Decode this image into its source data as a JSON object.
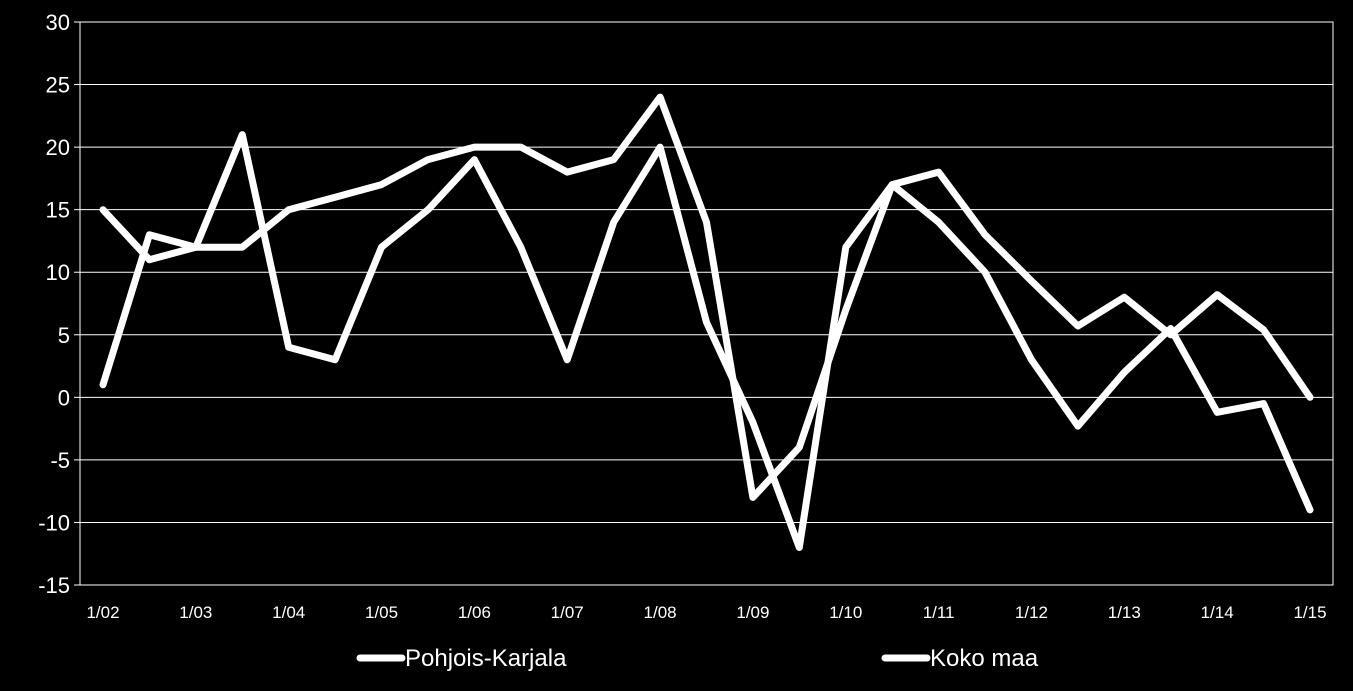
{
  "chart_data": {
    "type": "line",
    "title": "",
    "xlabel": "",
    "ylabel": "",
    "ylim": [
      -15,
      30
    ],
    "yticks": [
      "30",
      "25",
      "20",
      "15",
      "10",
      "5",
      "0",
      "-5",
      "-10",
      "-15"
    ],
    "ytick_values": [
      30,
      25,
      20,
      15,
      10,
      5,
      0,
      -5,
      -10,
      -15
    ],
    "xtick_labels": [
      "1/02",
      "1/03",
      "1/04",
      "1/05",
      "1/06",
      "1/07",
      "1/08",
      "1/09",
      "1/10",
      "1/11",
      "1/12",
      "1/13",
      "1/14",
      "1/15"
    ],
    "x": [
      "1/02",
      "7/02",
      "1/03",
      "7/03",
      "1/04",
      "7/04",
      "1/05",
      "7/05",
      "1/06",
      "7/06",
      "1/07",
      "7/07",
      "1/08",
      "7/08",
      "1/09",
      "7/09",
      "1/10",
      "7/10",
      "1/11",
      "7/11",
      "1/12",
      "7/12",
      "1/13",
      "7/13",
      "1/14",
      "7/14",
      "1/15"
    ],
    "grid": true,
    "legend_position": "bottom",
    "line_color": "#ffffff",
    "background": "#000000",
    "series": [
      {
        "name": "Pohjois-Karjala",
        "values": [
          1,
          13,
          12,
          21,
          4,
          3,
          12,
          15,
          19,
          12,
          3,
          14,
          20,
          6,
          -2,
          -12,
          12,
          17,
          14,
          10,
          3,
          -2.3,
          2,
          5.5,
          -1.2,
          -0.5,
          -9
        ]
      },
      {
        "name": "Koko maa",
        "values": [
          15,
          11,
          12,
          12,
          15,
          16,
          17,
          19,
          20,
          20,
          18,
          19,
          24,
          14,
          -8,
          -4,
          7,
          17,
          18,
          13,
          9.3,
          5.7,
          8,
          5,
          8.2,
          5.4,
          0
        ]
      }
    ]
  }
}
